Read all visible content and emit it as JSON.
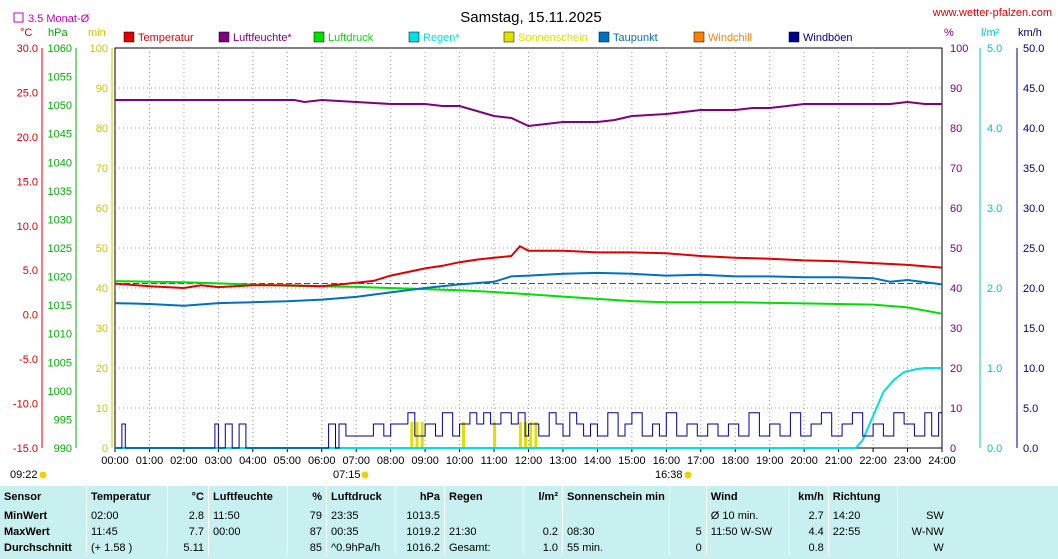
{
  "header": {
    "title": "Samstag, 15.11.2025",
    "source": "www.wetter-pfalzen.com",
    "avg_label": "3.5 Monat-Ø"
  },
  "units": {
    "temp": "°C",
    "pressure": "hPa",
    "minutes": "min",
    "percent": "%",
    "rain": "l/m²",
    "wind": "km/h"
  },
  "legend": [
    {
      "label": "Temperatur",
      "color": "#e00000"
    },
    {
      "label": "Luftfeuchte*",
      "color": "#800080"
    },
    {
      "label": "Luftdruck",
      "color": "#00e000"
    },
    {
      "label": "Regen*",
      "color": "#00e0e0"
    },
    {
      "label": "Sonnenschein",
      "color": "#e0e000"
    },
    {
      "label": "Taupunkt",
      "color": "#0070c0"
    },
    {
      "label": "Windchill",
      "color": "#ff8000"
    },
    {
      "label": "Windböen",
      "color": "#000090"
    }
  ],
  "sun": {
    "sunrise": "07:15",
    "sunset": "16:38",
    "current_time": "09:22"
  },
  "chart_data": {
    "type": "line",
    "title": "Samstag, 15.11.2025",
    "x_unit": "hour",
    "xlim": [
      0,
      24
    ],
    "x_ticks": [
      "00:00",
      "01:00",
      "02:00",
      "03:00",
      "04:00",
      "05:00",
      "06:00",
      "07:00",
      "08:00",
      "09:00",
      "10:00",
      "11:00",
      "12:00",
      "13:00",
      "14:00",
      "15:00",
      "16:00",
      "17:00",
      "18:00",
      "19:00",
      "20:00",
      "21:00",
      "22:00",
      "23:00",
      "24:00"
    ],
    "axes": {
      "temperature": {
        "unit": "°C",
        "range": [
          -15,
          30
        ],
        "ticks": [
          "30.0",
          "25.0",
          "20.0",
          "15.0",
          "10.0",
          "5.0",
          "0.0",
          "-5.0",
          "-10.0",
          "-15.0"
        ]
      },
      "pressure": {
        "unit": "hPa",
        "range": [
          990,
          1060
        ],
        "ticks": [
          "1060",
          "1055",
          "1050",
          "1045",
          "1040",
          "1035",
          "1030",
          "1025",
          "1020",
          "1015",
          "1010",
          "1005",
          "1000",
          "995",
          "990"
        ]
      },
      "minutes": {
        "unit": "min",
        "range": [
          0,
          100
        ],
        "ticks": [
          "100",
          "90",
          "80",
          "70",
          "60",
          "50",
          "40",
          "30",
          "20",
          "10",
          "0"
        ]
      },
      "humidity": {
        "unit": "%",
        "range": [
          0,
          100
        ],
        "ticks": [
          "100",
          "90",
          "80",
          "70",
          "60",
          "50",
          "40",
          "30",
          "20",
          "10",
          "0"
        ]
      },
      "rain": {
        "unit": "l/m²",
        "range": [
          0,
          5
        ],
        "ticks": [
          "5.0",
          "4.0",
          "3.0",
          "2.0",
          "1.0",
          "0.0"
        ]
      },
      "wind": {
        "unit": "km/h",
        "range": [
          0,
          50
        ],
        "ticks": [
          "50.0",
          "45.0",
          "40.0",
          "35.0",
          "30.0",
          "25.0",
          "20.0",
          "15.0",
          "10.0",
          "5.0",
          "0.0"
        ]
      }
    },
    "reference_line": {
      "name": "3.5 Monat-Ø",
      "axis": "temperature",
      "value": 3.5
    },
    "series": [
      {
        "name": "Luftfeuchte*",
        "axis": "humidity",
        "x": [
          0,
          2,
          4,
          5.2,
          5.5,
          6,
          7,
          8,
          8.5,
          9,
          9.5,
          10,
          11,
          11.5,
          12,
          12.5,
          13,
          14,
          14.5,
          15,
          16,
          16.5,
          17,
          18,
          18.5,
          19,
          20,
          21,
          22,
          22.5,
          23,
          23.5,
          24
        ],
        "y": [
          87,
          87,
          87,
          87,
          86.5,
          87,
          86.5,
          86,
          86,
          86,
          85.5,
          85.5,
          83,
          82.5,
          80.5,
          81,
          81.5,
          81.5,
          82,
          83,
          83.5,
          84,
          84.5,
          84.5,
          85,
          85,
          86,
          86,
          86,
          86,
          86.5,
          86,
          86
        ]
      },
      {
        "name": "Temperatur",
        "axis": "temperature",
        "x": [
          0,
          1,
          2,
          2.5,
          3,
          4,
          5,
          6,
          7,
          7.5,
          8,
          8.5,
          9,
          9.5,
          10,
          10.5,
          11,
          11.5,
          11.75,
          12,
          13,
          14,
          15,
          16,
          17,
          18,
          19,
          20,
          21,
          22,
          23,
          24
        ],
        "y": [
          3.5,
          3.2,
          3.0,
          3.3,
          3.1,
          3.3,
          3.3,
          3.2,
          3.6,
          3.8,
          4.4,
          4.8,
          5.2,
          5.5,
          5.9,
          6.2,
          6.4,
          6.6,
          7.7,
          7.2,
          7.2,
          7.0,
          7.0,
          6.9,
          6.6,
          6.4,
          6.3,
          6.1,
          6.0,
          5.8,
          5.6,
          5.3
        ]
      },
      {
        "name": "Taupunkt",
        "axis": "temperature",
        "x": [
          0,
          1,
          2,
          3,
          4,
          5,
          6,
          7,
          8,
          9,
          10,
          11,
          11.5,
          12,
          13,
          14,
          15,
          16,
          17,
          18,
          19,
          20,
          21,
          22,
          22.5,
          23,
          24
        ],
        "y": [
          1.3,
          1.2,
          1.0,
          1.3,
          1.4,
          1.5,
          1.7,
          2.0,
          2.5,
          3.0,
          3.4,
          3.7,
          4.3,
          4.4,
          4.6,
          4.7,
          4.6,
          4.4,
          4.5,
          4.3,
          4.3,
          4.2,
          4.2,
          4.1,
          3.7,
          3.9,
          3.4
        ]
      },
      {
        "name": "Luftdruck",
        "axis": "pressure",
        "x": [
          0,
          1,
          2,
          3,
          4,
          5,
          6,
          7,
          8,
          9,
          10,
          11,
          12,
          13,
          14,
          15,
          16,
          17,
          18,
          19,
          20,
          21,
          22,
          23,
          24
        ],
        "y": [
          1019.2,
          1019.1,
          1019.0,
          1018.8,
          1018.6,
          1018.4,
          1018.3,
          1018.2,
          1018.0,
          1017.8,
          1017.6,
          1017.3,
          1016.9,
          1016.5,
          1016.1,
          1015.7,
          1015.5,
          1015.5,
          1015.5,
          1015.4,
          1015.3,
          1015.2,
          1015.1,
          1014.6,
          1013.5
        ]
      },
      {
        "name": "Windböen",
        "axis": "wind",
        "x": [
          0,
          0.2,
          0.3,
          0.4,
          2.8,
          2.9,
          3.0,
          3.2,
          3.4,
          3.6,
          3.8,
          4.0,
          6.0,
          6.2,
          6.4,
          6.5,
          6.7,
          7.0,
          7.5,
          7.8,
          8.0,
          8.5,
          8.7,
          9.0,
          9.3,
          9.5,
          9.8,
          10.0,
          10.3,
          10.5,
          10.7,
          10.9,
          11.2,
          11.5,
          11.7,
          11.9,
          12.0,
          12.3,
          12.6,
          12.8,
          13.0,
          13.2,
          13.4,
          13.6,
          13.8,
          14.0,
          14.3,
          14.6,
          14.8,
          15.0,
          15.3,
          15.6,
          15.8,
          16.0,
          16.3,
          16.6,
          16.9,
          17.2,
          17.5,
          17.8,
          18.1,
          18.4,
          18.7,
          19.0,
          19.3,
          19.6,
          19.9,
          20.2,
          20.5,
          20.8,
          21.1,
          21.4,
          21.7,
          22.0,
          22.3,
          22.6,
          22.9,
          23.2,
          23.5,
          23.7,
          23.9,
          24.0
        ],
        "y": [
          0,
          3,
          0,
          0,
          0,
          3,
          0,
          3,
          0,
          3,
          0,
          0,
          0,
          3,
          0,
          3,
          1.5,
          1.5,
          3,
          1.5,
          3,
          4.4,
          1.5,
          3,
          1.5,
          4.4,
          1.5,
          3,
          4.4,
          3,
          4.4,
          3,
          4.4,
          3,
          4.4,
          1.5,
          3,
          1.5,
          4.4,
          3,
          1.5,
          4.4,
          3,
          1.5,
          3,
          1.5,
          4.4,
          1.5,
          3,
          4.4,
          1.5,
          3,
          1.5,
          4.4,
          1.5,
          3,
          1.5,
          3,
          1.5,
          3,
          1.5,
          4.4,
          1.5,
          3,
          1.5,
          4.4,
          1.5,
          3,
          4.4,
          1.5,
          3,
          4.4,
          1.5,
          3,
          1.5,
          4.4,
          3,
          1.5,
          4.4,
          1.5,
          4.4,
          4.4
        ]
      },
      {
        "name": "Regen*",
        "axis": "rain",
        "x": [
          0,
          21.5,
          21.7,
          21.9,
          22.1,
          22.3,
          22.6,
          22.9,
          23.2,
          23.5,
          23.8,
          24
        ],
        "y": [
          0,
          0,
          0.1,
          0.3,
          0.5,
          0.7,
          0.85,
          0.95,
          0.98,
          1.0,
          1.0,
          1.0
        ]
      },
      {
        "name": "Sonnenschein",
        "axis": "minutes",
        "type": "bar",
        "x": [
          8.6,
          8.75,
          8.9,
          10.1,
          11.0,
          11.75,
          11.9,
          12.05,
          12.2
        ],
        "y": [
          5,
          5,
          5,
          5,
          5,
          5,
          5,
          5,
          5
        ]
      }
    ]
  },
  "summary": {
    "headers": [
      {
        "label": "Sensor",
        "unit": ""
      },
      {
        "label": "Temperatur",
        "unit": "°C"
      },
      {
        "label": "Luftfeuchte",
        "unit": "%"
      },
      {
        "label": "Luftdruck",
        "unit": "hPa"
      },
      {
        "label": "Regen",
        "unit": "l/m²"
      },
      {
        "label": "Sonnenschein min",
        "unit": ""
      },
      {
        "label": "Wind",
        "unit": "km/h"
      },
      {
        "label": "Richtung",
        "unit": ""
      }
    ],
    "rows": [
      {
        "label": "MinWert",
        "cells": [
          [
            "02:00",
            "2.8"
          ],
          [
            "11:50",
            "79"
          ],
          [
            "23:35",
            "1013.5"
          ],
          [
            "",
            ""
          ],
          [
            "",
            ""
          ],
          [
            "Ø 10 min.",
            "2.7"
          ],
          [
            "14:20",
            "SW"
          ]
        ]
      },
      {
        "label": "MaxWert",
        "cells": [
          [
            "11:45",
            "7.7"
          ],
          [
            "00:00",
            "87"
          ],
          [
            "00:35",
            "1019.2"
          ],
          [
            "21:30",
            "0.2"
          ],
          [
            "08:30",
            "5"
          ],
          [
            "11:50     W-SW",
            "4.4"
          ],
          [
            "22:55",
            "W-NW"
          ]
        ]
      },
      {
        "label": "Durchschnitt",
        "cells": [
          [
            "(+ 1.58 )",
            "5.11"
          ],
          [
            "",
            "85"
          ],
          [
            "^0.9hPa/h",
            "1016.2"
          ],
          [
            "Gesamt:",
            "1.0"
          ],
          [
            "55 min.",
            "0"
          ],
          [
            "",
            "0.8"
          ],
          [
            "",
            "W"
          ]
        ]
      }
    ]
  }
}
